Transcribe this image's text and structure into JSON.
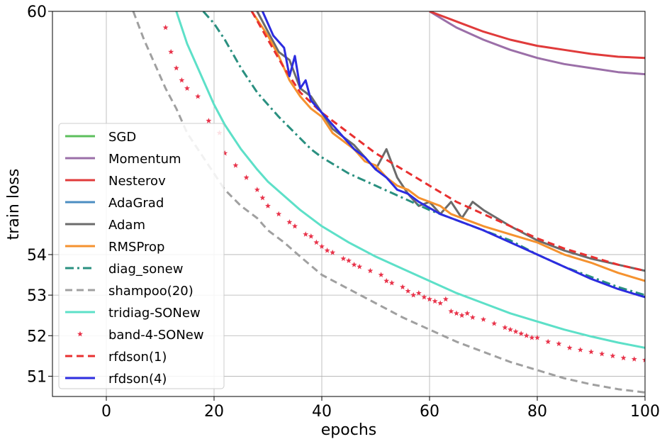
{
  "chart_data": {
    "type": "line",
    "xlabel": "epochs",
    "ylabel": "train loss",
    "xlim": [
      -10,
      100
    ],
    "ylim": [
      50.5,
      60
    ],
    "xticks": [
      0,
      20,
      40,
      60,
      80,
      100
    ],
    "yticks": [
      51,
      52,
      53,
      54,
      60
    ],
    "grid": true,
    "legend_position": "lower-left",
    "series": [
      {
        "name": "SGD",
        "color": "#5cbf5c",
        "style": "solid",
        "x": [],
        "y": []
      },
      {
        "name": "Momentum",
        "color": "#9b6fa8",
        "style": "solid",
        "x": [
          60,
          65,
          70,
          75,
          80,
          85,
          90,
          95,
          100
        ],
        "y": [
          60.0,
          59.6,
          59.3,
          59.05,
          58.85,
          58.7,
          58.6,
          58.5,
          58.45
        ]
      },
      {
        "name": "Nesterov",
        "color": "#e03b3b",
        "style": "solid",
        "x": [
          60,
          65,
          70,
          75,
          80,
          85,
          90,
          95,
          100
        ],
        "y": [
          60.0,
          59.75,
          59.5,
          59.3,
          59.15,
          59.05,
          58.95,
          58.88,
          58.85
        ]
      },
      {
        "name": "AdaGrad",
        "color": "#4b8ec2",
        "style": "solid",
        "x": [],
        "y": []
      },
      {
        "name": "Adam",
        "color": "#6b6b6b",
        "style": "solid",
        "x": [
          28,
          30,
          32,
          34,
          36,
          38,
          40,
          42,
          44,
          46,
          48,
          50,
          52,
          54,
          56,
          58,
          60,
          62,
          64,
          66,
          68,
          70,
          75,
          80,
          85,
          90,
          95,
          100
        ],
        "y": [
          60.0,
          59.5,
          59.0,
          58.8,
          58.1,
          57.9,
          57.5,
          57.1,
          56.9,
          56.7,
          56.4,
          56.1,
          56.6,
          55.9,
          55.5,
          55.2,
          55.3,
          55.0,
          55.3,
          54.9,
          55.3,
          55.1,
          54.7,
          54.35,
          54.1,
          53.9,
          53.75,
          53.6
        ]
      },
      {
        "name": "RMSProp",
        "color": "#f5922f",
        "style": "solid",
        "x": [
          27,
          30,
          32,
          34,
          36,
          38,
          40,
          42,
          44,
          46,
          48,
          50,
          52,
          54,
          56,
          58,
          60,
          62,
          64,
          66,
          68,
          70,
          75,
          80,
          85,
          90,
          95,
          100
        ],
        "y": [
          60.0,
          59.4,
          58.9,
          58.3,
          57.9,
          57.6,
          57.4,
          57.0,
          56.8,
          56.6,
          56.3,
          56.2,
          55.9,
          55.7,
          55.6,
          55.4,
          55.3,
          55.2,
          55.0,
          54.9,
          54.8,
          54.7,
          54.5,
          54.3,
          54.0,
          53.8,
          53.55,
          53.35
        ]
      },
      {
        "name": "diag_sonew",
        "color": "#2a9080",
        "style": "dashdot",
        "x": [
          18,
          20,
          22,
          25,
          28,
          30,
          32,
          35,
          38,
          40,
          45,
          50,
          55,
          60,
          65,
          70,
          75,
          80,
          85,
          90,
          95,
          100
        ],
        "y": [
          60.0,
          59.7,
          59.3,
          58.6,
          58.0,
          57.7,
          57.4,
          57.0,
          56.6,
          56.4,
          56.0,
          55.7,
          55.4,
          55.1,
          54.85,
          54.6,
          54.35,
          54.0,
          53.7,
          53.45,
          53.2,
          53.0
        ]
      },
      {
        "name": "shampoo(20)",
        "color": "#a0a0a0",
        "style": "dashed",
        "x": [
          5,
          7,
          9,
          11,
          13,
          15,
          18,
          20,
          22,
          25,
          28,
          30,
          33,
          36,
          40,
          45,
          50,
          55,
          60,
          65,
          70,
          75,
          80,
          85,
          90,
          95,
          100
        ],
        "y": [
          60.0,
          59.3,
          58.7,
          58.1,
          57.6,
          57.0,
          56.4,
          56.0,
          55.6,
          55.2,
          54.9,
          54.6,
          54.3,
          53.95,
          53.5,
          53.15,
          52.8,
          52.45,
          52.15,
          51.85,
          51.6,
          51.35,
          51.15,
          50.95,
          50.8,
          50.68,
          50.6
        ]
      },
      {
        "name": "tridiag-SONew",
        "color": "#5de0c8",
        "style": "solid",
        "x": [
          13,
          15,
          17,
          20,
          22,
          25,
          28,
          30,
          33,
          36,
          40,
          45,
          50,
          55,
          60,
          65,
          70,
          75,
          80,
          85,
          90,
          95,
          100
        ],
        "y": [
          60.0,
          59.2,
          58.6,
          57.7,
          57.2,
          56.6,
          56.1,
          55.8,
          55.45,
          55.1,
          54.7,
          54.3,
          53.95,
          53.65,
          53.35,
          53.05,
          52.8,
          52.55,
          52.35,
          52.15,
          51.98,
          51.83,
          51.7
        ]
      },
      {
        "name": "band-4-SONew",
        "color": "#e8334a",
        "style": "stars",
        "x": [
          11,
          12,
          13,
          14,
          15,
          17,
          19,
          21,
          22,
          24,
          26,
          28,
          29,
          30,
          32,
          34,
          35,
          37,
          38,
          39,
          40,
          41,
          42,
          44,
          45,
          46,
          47,
          49,
          51,
          52,
          53,
          55,
          56,
          57,
          58,
          59,
          60,
          61,
          62,
          63,
          64,
          65,
          66,
          67,
          68,
          70,
          72,
          74,
          75,
          76,
          77,
          78,
          79,
          80,
          82,
          84,
          86,
          88,
          90,
          92,
          94,
          96,
          98,
          100
        ],
        "y": [
          59.6,
          59.0,
          58.6,
          58.3,
          58.1,
          57.9,
          57.3,
          57.0,
          56.5,
          56.2,
          55.9,
          55.6,
          55.4,
          55.2,
          55.0,
          54.8,
          54.7,
          54.5,
          54.45,
          54.3,
          54.2,
          54.1,
          54.05,
          53.9,
          53.85,
          53.75,
          53.7,
          53.6,
          53.5,
          53.35,
          53.3,
          53.2,
          53.1,
          53.0,
          53.05,
          52.95,
          52.9,
          52.85,
          52.8,
          52.9,
          52.6,
          52.55,
          52.5,
          52.55,
          52.45,
          52.4,
          52.3,
          52.2,
          52.15,
          52.1,
          52.05,
          52.0,
          51.95,
          51.95,
          51.85,
          51.8,
          51.7,
          51.65,
          51.6,
          51.55,
          51.5,
          51.45,
          51.42,
          51.4
        ]
      },
      {
        "name": "rfdson(1)",
        "color": "#e83030",
        "style": "dashed",
        "x": [
          27,
          30,
          33,
          36,
          40,
          45,
          50,
          55,
          60,
          65,
          70,
          75,
          80,
          85,
          90,
          95,
          100
        ],
        "y": [
          60.0,
          59.3,
          58.6,
          58.0,
          57.5,
          57.0,
          56.5,
          56.1,
          55.7,
          55.3,
          55.0,
          54.7,
          54.4,
          54.15,
          53.95,
          53.75,
          53.6
        ]
      },
      {
        "name": "rfdson(4)",
        "color": "#2c2ce0",
        "style": "solid",
        "x": [
          29,
          31,
          33,
          34,
          35,
          36,
          37,
          38,
          40,
          42,
          44,
          46,
          48,
          50,
          52,
          54,
          56,
          58,
          60,
          62,
          64,
          66,
          68,
          70,
          75,
          80,
          85,
          90,
          95,
          100
        ],
        "y": [
          60.0,
          59.4,
          59.1,
          58.4,
          58.9,
          58.1,
          58.3,
          57.8,
          57.5,
          57.2,
          56.9,
          56.6,
          56.4,
          56.1,
          55.9,
          55.6,
          55.5,
          55.3,
          55.15,
          55.0,
          54.9,
          54.8,
          54.7,
          54.6,
          54.3,
          54.0,
          53.7,
          53.4,
          53.15,
          52.95
        ]
      }
    ]
  }
}
